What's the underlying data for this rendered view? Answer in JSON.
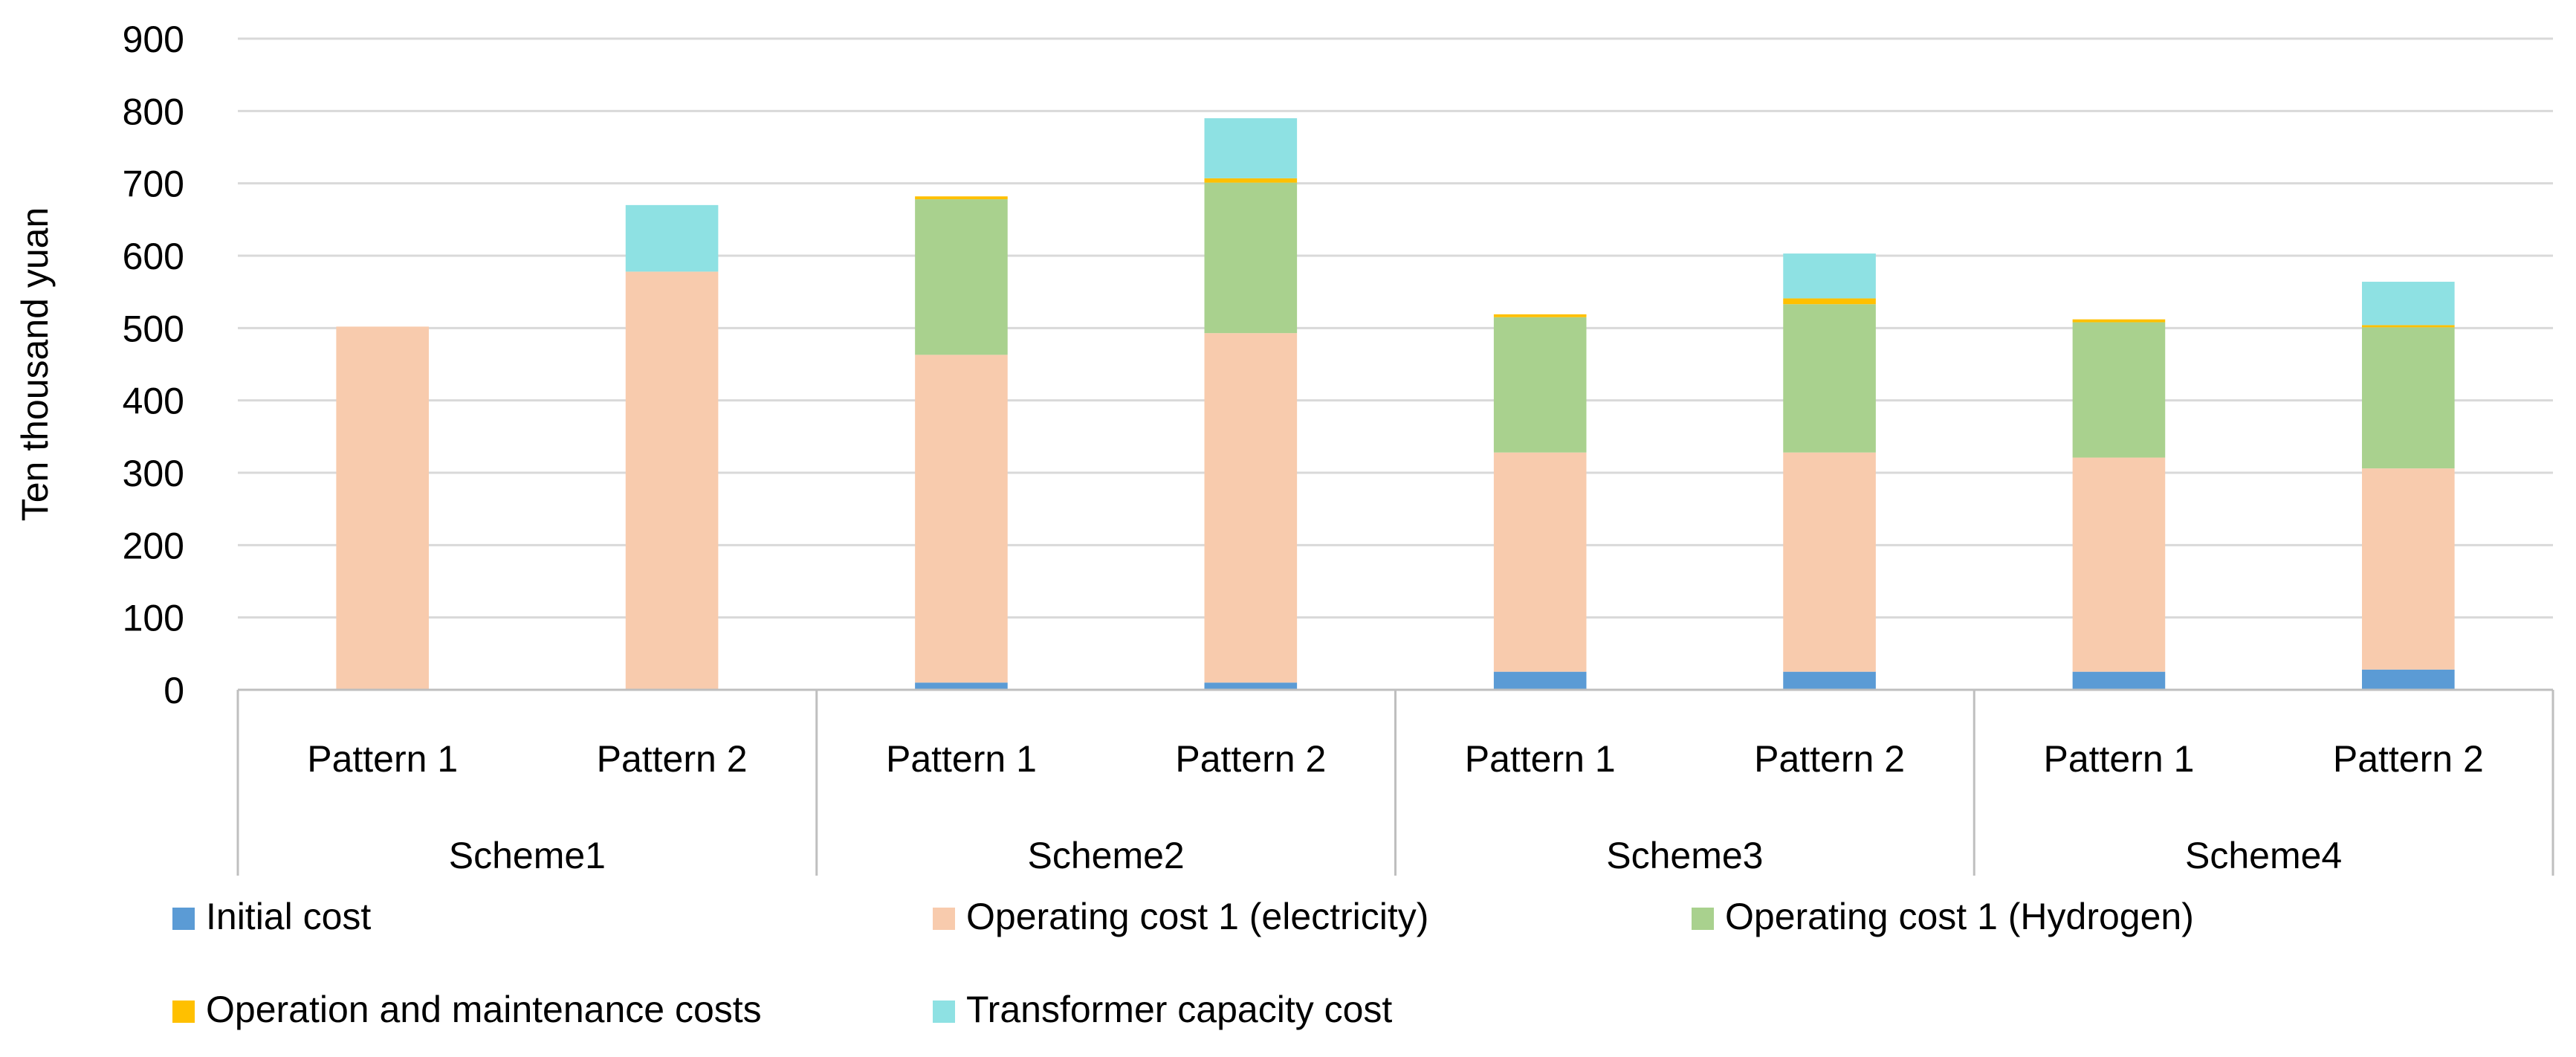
{
  "chart_data": {
    "type": "bar",
    "stacked": true,
    "title": "",
    "xlabel": "",
    "ylabel": "Ten thousand yuan",
    "ylim": [
      0,
      900
    ],
    "yticks": [
      0,
      100,
      200,
      300,
      400,
      500,
      600,
      700,
      800,
      900
    ],
    "grid": true,
    "legend_position": "bottom",
    "groups": [
      {
        "label": "Scheme1",
        "categories": [
          "Pattern 1",
          "Pattern 2"
        ]
      },
      {
        "label": "Scheme2",
        "categories": [
          "Pattern 1",
          "Pattern 2"
        ]
      },
      {
        "label": "Scheme3",
        "categories": [
          "Pattern 1",
          "Pattern 2"
        ]
      },
      {
        "label": "Scheme4",
        "categories": [
          "Pattern 1",
          "Pattern 2"
        ]
      }
    ],
    "series": [
      {
        "name": "Initial cost",
        "color": "#5B9BD5",
        "values": [
          0,
          0,
          10,
          10,
          25,
          25,
          25,
          28
        ]
      },
      {
        "name": "Operating cost 1 (electricity)",
        "color": "#F8CBAD",
        "values": [
          502,
          578,
          453,
          483,
          303,
          303,
          296,
          278
        ]
      },
      {
        "name": "Operating cost 1 (Hydrogen)",
        "color": "#A9D18E",
        "values": [
          0,
          0,
          215,
          208,
          187,
          205,
          187,
          195
        ]
      },
      {
        "name": "Operation and maintenance costs",
        "color": "#FFC000",
        "values": [
          0,
          0,
          4,
          6,
          4,
          8,
          4,
          3
        ]
      },
      {
        "name": "Transformer capacity cost",
        "color": "#8EE1E3",
        "values": [
          0,
          92,
          0,
          83,
          0,
          62,
          0,
          60
        ]
      }
    ]
  },
  "colors": {
    "gridline": "#D9D9D9",
    "axis": "#BFBFBF"
  }
}
